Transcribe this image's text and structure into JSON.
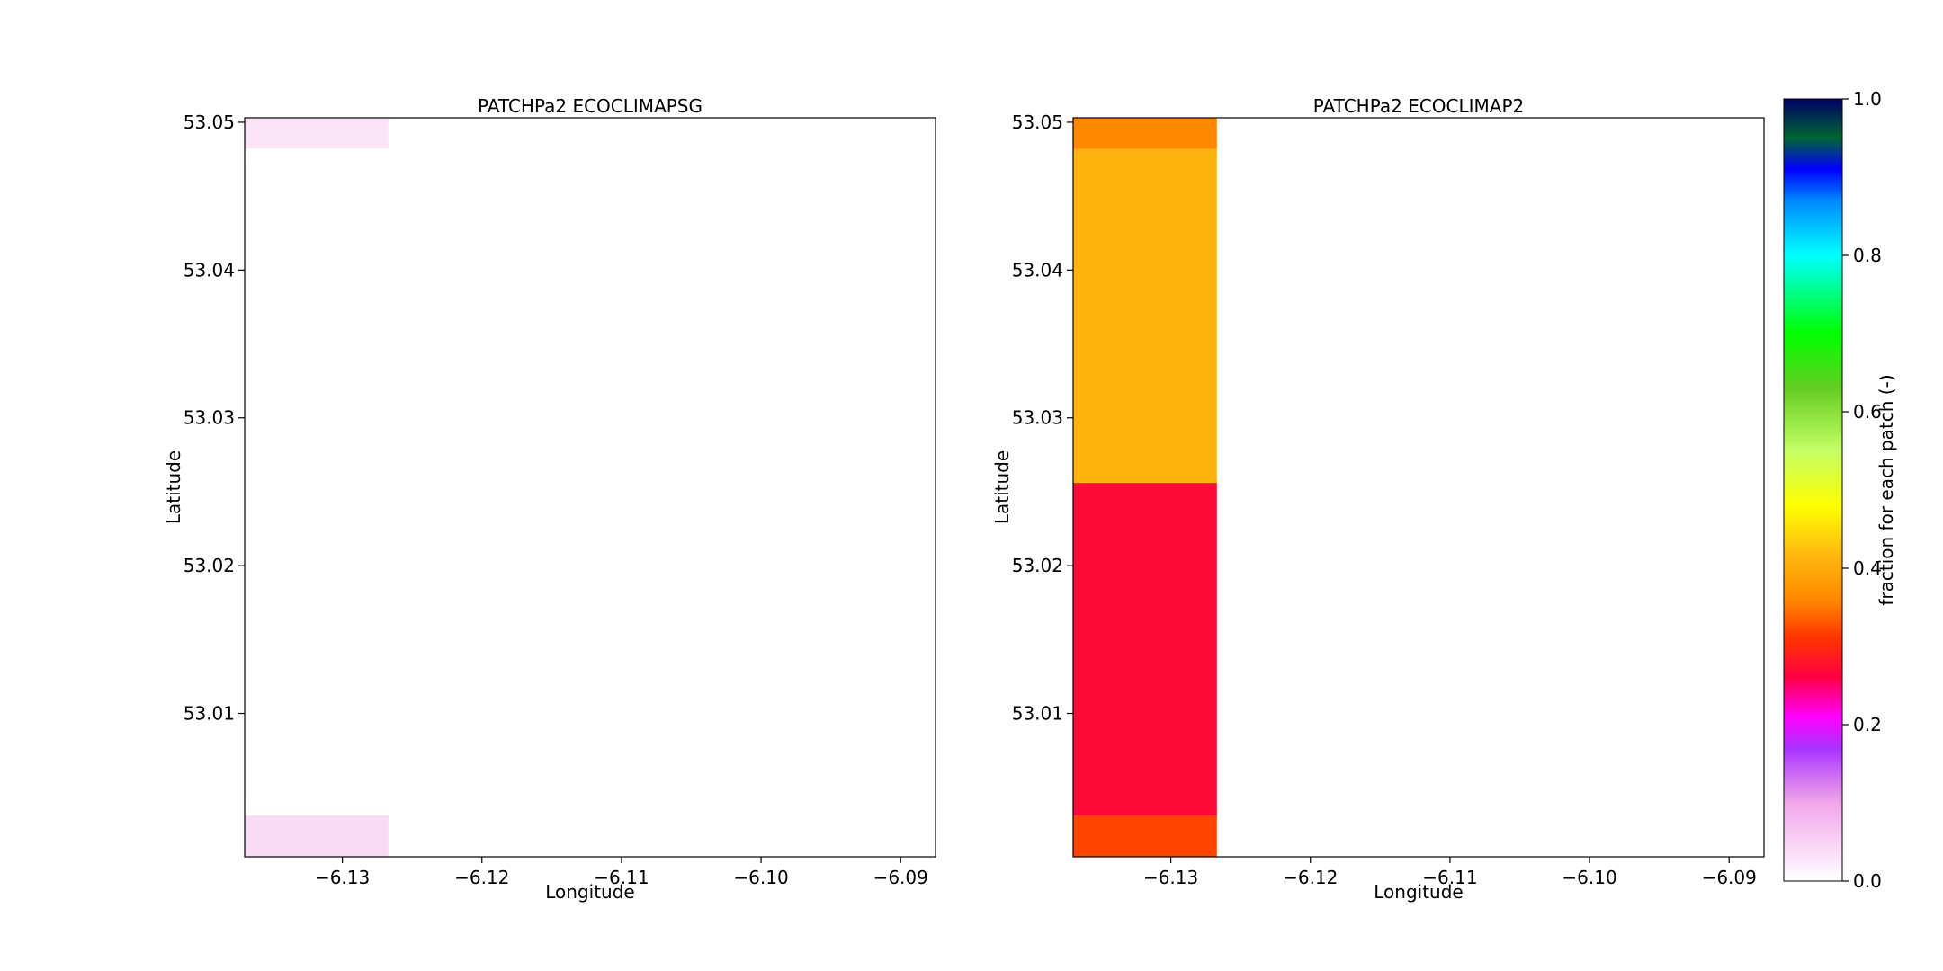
{
  "chart_data": [
    {
      "type": "heatmap",
      "title": "PATCHPa2 ECOCLIMAPSG",
      "xlabel": "Longitude",
      "ylabel": "Latitude",
      "xlim": [
        -6.137,
        -6.0875
      ],
      "ylim": [
        53.0003,
        53.0503
      ],
      "xticks": [
        "−6.13",
        "−6.12",
        "−6.11",
        "−6.10",
        "−6.09"
      ],
      "yticks": [
        "53.01",
        "53.02",
        "53.03",
        "53.04",
        "53.05"
      ],
      "cells": [
        {
          "lon": [
            -6.137,
            -6.1267
          ],
          "lat": [
            53.0003,
            53.0031
          ],
          "value": 0.04
        },
        {
          "lon": [
            -6.137,
            -6.1267
          ],
          "lat": [
            53.0482,
            53.0503
          ],
          "value": 0.03
        }
      ]
    },
    {
      "type": "heatmap",
      "title": "PATCHPa2 ECOCLIMAP2",
      "xlabel": "Longitude",
      "ylabel": "Latitude",
      "xlim": [
        -6.137,
        -6.0875
      ],
      "ylim": [
        53.0003,
        53.0503
      ],
      "xticks": [
        "−6.13",
        "−6.12",
        "−6.11",
        "−6.10",
        "−6.09"
      ],
      "yticks": [
        "53.01",
        "53.02",
        "53.03",
        "53.04",
        "53.05"
      ],
      "cells": [
        {
          "lon": [
            -6.137,
            -6.1267
          ],
          "lat": [
            53.0003,
            53.0031
          ],
          "value": 0.32
        },
        {
          "lon": [
            -6.137,
            -6.1267
          ],
          "lat": [
            53.0031,
            53.0256
          ],
          "value": 0.27
        },
        {
          "lon": [
            -6.137,
            -6.1267
          ],
          "lat": [
            53.0256,
            53.0482
          ],
          "value": 0.41
        },
        {
          "lon": [
            -6.137,
            -6.1267
          ],
          "lat": [
            53.0482,
            53.0503
          ],
          "value": 0.36
        }
      ]
    }
  ],
  "colorbar": {
    "label": "fraction for each patch (-)",
    "range": [
      0,
      1
    ],
    "ticks": [
      "0.0",
      "0.2",
      "0.4",
      "0.6",
      "0.8",
      "1.0"
    ],
    "stops": [
      {
        "v": 0.0,
        "c": "#ffffff"
      },
      {
        "v": 0.1,
        "c": "#f0a6e8"
      },
      {
        "v": 0.17,
        "c": "#a833ff"
      },
      {
        "v": 0.21,
        "c": "#ff00ff"
      },
      {
        "v": 0.26,
        "c": "#ff0044"
      },
      {
        "v": 0.31,
        "c": "#ff3300"
      },
      {
        "v": 0.36,
        "c": "#ff8800"
      },
      {
        "v": 0.42,
        "c": "#ffbb11"
      },
      {
        "v": 0.48,
        "c": "#ffff00"
      },
      {
        "v": 0.55,
        "c": "#c4ff66"
      },
      {
        "v": 0.63,
        "c": "#66cc22"
      },
      {
        "v": 0.7,
        "c": "#00ff00"
      },
      {
        "v": 0.8,
        "c": "#00ffff"
      },
      {
        "v": 0.87,
        "c": "#0088ff"
      },
      {
        "v": 0.91,
        "c": "#0000ff"
      },
      {
        "v": 0.95,
        "c": "#006633"
      },
      {
        "v": 1.0,
        "c": "#000066"
      }
    ]
  }
}
